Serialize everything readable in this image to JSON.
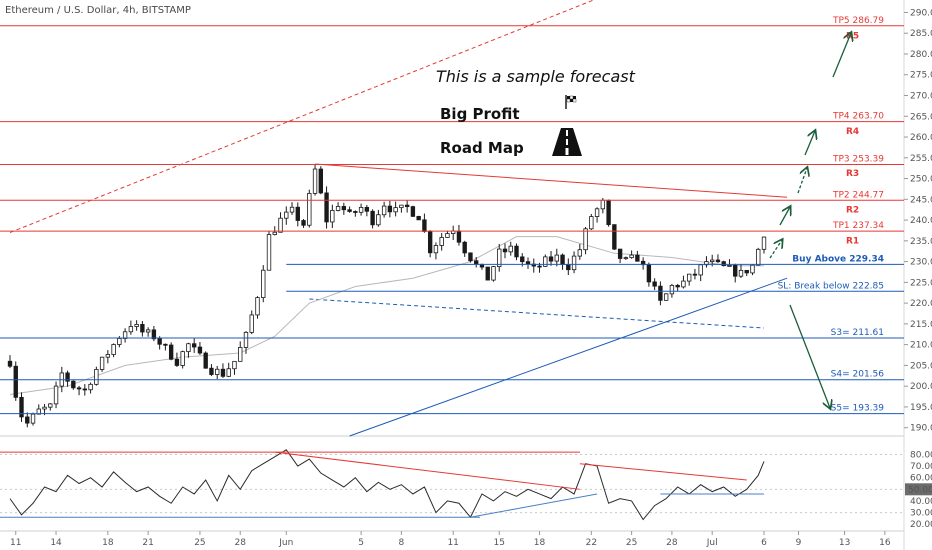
{
  "header": {
    "title": "Ethereum / U.S. Dollar, 4h, BITSTAMP"
  },
  "annotations": {
    "forecast": "This is a sample forecast",
    "big_profit": "Big Profit",
    "road_map": "Road Map"
  },
  "icons": {
    "flag": "checkered-flag-icon",
    "road": "road-icon"
  },
  "colors": {
    "red": "#e53935",
    "blue": "#1e5bb8",
    "candle": "#1a1a1a",
    "ma": "#b8b8b8",
    "green_arrow": "#1b5e3a",
    "rsi": "#2b2b2b",
    "rsi_blue": "#4a7fc4",
    "rsi_red": "#e53935"
  },
  "chart_data": [
    {
      "type": "candlestick",
      "ylim": [
        188,
        293
      ],
      "y_ticks": [
        190,
        195,
        200,
        205,
        210,
        215,
        220,
        225,
        230,
        235,
        240,
        245,
        250,
        255,
        260,
        265,
        270,
        275,
        280,
        285,
        290
      ],
      "x_ticks": [
        "11",
        "14",
        "18",
        "21",
        "25",
        "28",
        "Jun",
        "5",
        "8",
        "11",
        "15",
        "18",
        "22",
        "25",
        "28",
        "Jul",
        "6",
        "9",
        "13",
        "16"
      ],
      "levels": [
        {
          "label": "TP5 286.79",
          "value": 286.79,
          "color": "red"
        },
        {
          "label": "R5",
          "value": 284.5,
          "color": "red"
        },
        {
          "label": "TP4 263.70",
          "value": 263.7,
          "color": "red"
        },
        {
          "label": "R4",
          "value": 261.5,
          "color": "red"
        },
        {
          "label": "TP3 253.39",
          "value": 253.39,
          "color": "red"
        },
        {
          "label": "R3",
          "value": 251.3,
          "color": "red"
        },
        {
          "label": "TP2 244.77",
          "value": 244.77,
          "color": "red"
        },
        {
          "label": "R2",
          "value": 242.5,
          "color": "red"
        },
        {
          "label": "TP1 237.34",
          "value": 237.34,
          "color": "red"
        },
        {
          "label": "R1",
          "value": 235.1,
          "color": "red"
        },
        {
          "label": "Buy Above 229.34",
          "value": 229.34,
          "color": "blue"
        },
        {
          "label": "SL: Break below 222.85",
          "value": 222.85,
          "color": "blue"
        },
        {
          "label": "S3= 211.61",
          "value": 211.61,
          "color": "blue"
        },
        {
          "label": "S4= 201.56",
          "value": 201.56,
          "color": "blue"
        },
        {
          "label": "S5= 193.39",
          "value": 193.39,
          "color": "blue"
        }
      ],
      "close_path": [
        [
          0,
          206
        ],
        [
          1.5,
          194
        ],
        [
          3,
          191
        ],
        [
          5,
          194
        ],
        [
          7,
          195
        ],
        [
          9,
          203
        ],
        [
          11,
          200
        ],
        [
          13,
          199
        ],
        [
          15,
          204
        ],
        [
          17,
          208
        ],
        [
          19,
          212
        ],
        [
          21,
          215
        ],
        [
          23,
          213
        ],
        [
          25,
          212
        ],
        [
          27,
          209
        ],
        [
          29,
          206
        ],
        [
          31,
          210
        ],
        [
          33,
          207
        ],
        [
          35,
          204
        ],
        [
          37,
          203
        ],
        [
          39,
          206
        ],
        [
          41,
          212
        ],
        [
          43,
          222
        ],
        [
          45,
          236
        ],
        [
          47,
          240
        ],
        [
          49,
          242
        ],
        [
          51,
          239
        ],
        [
          53,
          252
        ],
        [
          55,
          240
        ],
        [
          57,
          244
        ],
        [
          59,
          241
        ],
        [
          61,
          243
        ],
        [
          63,
          240
        ],
        [
          65,
          244
        ],
        [
          67,
          242
        ],
        [
          69,
          243
        ],
        [
          71,
          241
        ],
        [
          73,
          233
        ],
        [
          75,
          236
        ],
        [
          77,
          238
        ],
        [
          79,
          233
        ],
        [
          81,
          229
        ],
        [
          83,
          226
        ],
        [
          85,
          232
        ],
        [
          87,
          233
        ],
        [
          89,
          230
        ],
        [
          91,
          228
        ],
        [
          93,
          230
        ],
        [
          95,
          231
        ],
        [
          97,
          229
        ],
        [
          99,
          233
        ],
        [
          101,
          241
        ],
        [
          103,
          244
        ],
        [
          105,
          232
        ],
        [
          107,
          230
        ],
        [
          109,
          231
        ],
        [
          111,
          226
        ],
        [
          113,
          220
        ],
        [
          115,
          224
        ],
        [
          117,
          225
        ],
        [
          119,
          227
        ],
        [
          121,
          230
        ],
        [
          123,
          229
        ],
        [
          125,
          228
        ],
        [
          127,
          227
        ],
        [
          129,
          229
        ],
        [
          131,
          237
        ]
      ],
      "series": [
        {
          "name": "",
          "kind": "moving-average",
          "values": [
            [
              0,
              198
            ],
            [
              10,
              200
            ],
            [
              20,
              205
            ],
            [
              30,
              207
            ],
            [
              40,
              208
            ],
            [
              46,
              212
            ],
            [
              52,
              220
            ],
            [
              60,
              224
            ],
            [
              70,
              226
            ],
            [
              80,
              230
            ],
            [
              88,
              236
            ],
            [
              95,
              236
            ],
            [
              105,
              232
            ],
            [
              115,
              231
            ],
            [
              125,
              229
            ],
            [
              131,
              229
            ]
          ]
        }
      ],
      "trendlines": [
        {
          "kind": "red-dashed",
          "points": [
            [
              0,
              237
            ],
            [
              105,
              295
            ]
          ]
        },
        {
          "kind": "red-descending-resistance",
          "points": [
            [
              53,
              253.5
            ],
            [
              135,
              245.5
            ]
          ]
        },
        {
          "kind": "blue-rising-support",
          "points": [
            [
              59,
              188
            ],
            [
              135,
              226
            ]
          ]
        },
        {
          "kind": "blue-dashed-channel",
          "points": [
            [
              52,
              221
            ],
            [
              131,
              214
            ]
          ]
        }
      ]
    },
    {
      "type": "line",
      "name": "",
      "ylim": [
        15,
        95
      ],
      "y_ticks": [
        20,
        30,
        40,
        50,
        60,
        70,
        80
      ],
      "badge": "50.00",
      "values": [
        [
          0,
          42
        ],
        [
          2,
          28
        ],
        [
          4,
          38
        ],
        [
          6,
          52
        ],
        [
          8,
          48
        ],
        [
          10,
          62
        ],
        [
          12,
          55
        ],
        [
          14,
          60
        ],
        [
          16,
          52
        ],
        [
          18,
          65
        ],
        [
          20,
          56
        ],
        [
          22,
          48
        ],
        [
          24,
          52
        ],
        [
          26,
          44
        ],
        [
          28,
          38
        ],
        [
          30,
          52
        ],
        [
          32,
          46
        ],
        [
          34,
          58
        ],
        [
          36,
          40
        ],
        [
          38,
          62
        ],
        [
          40,
          50
        ],
        [
          42,
          66
        ],
        [
          44,
          72
        ],
        [
          46,
          78
        ],
        [
          48,
          84
        ],
        [
          50,
          70
        ],
        [
          52,
          76
        ],
        [
          54,
          64
        ],
        [
          56,
          58
        ],
        [
          58,
          52
        ],
        [
          60,
          60
        ],
        [
          62,
          48
        ],
        [
          64,
          56
        ],
        [
          66,
          50
        ],
        [
          68,
          54
        ],
        [
          70,
          46
        ],
        [
          72,
          52
        ],
        [
          74,
          30
        ],
        [
          76,
          40
        ],
        [
          78,
          38
        ],
        [
          80,
          26
        ],
        [
          82,
          46
        ],
        [
          84,
          40
        ],
        [
          86,
          48
        ],
        [
          88,
          44
        ],
        [
          90,
          50
        ],
        [
          92,
          46
        ],
        [
          94,
          42
        ],
        [
          96,
          52
        ],
        [
          98,
          46
        ],
        [
          100,
          72
        ],
        [
          102,
          70
        ],
        [
          104,
          38
        ],
        [
          106,
          42
        ],
        [
          108,
          40
        ],
        [
          110,
          24
        ],
        [
          112,
          36
        ],
        [
          114,
          42
        ],
        [
          116,
          52
        ],
        [
          118,
          46
        ],
        [
          120,
          54
        ],
        [
          122,
          48
        ],
        [
          124,
          52
        ],
        [
          126,
          44
        ],
        [
          128,
          50
        ],
        [
          130,
          62
        ],
        [
          131,
          74
        ]
      ],
      "trendlines": [
        {
          "kind": "red",
          "points": [
            [
              46,
              82
            ],
            [
              99,
              50
            ]
          ]
        },
        {
          "kind": "red",
          "points": [
            [
              99,
              72
            ],
            [
              128,
              58
            ]
          ]
        },
        {
          "kind": "blue",
          "points": [
            [
              80,
              26
            ],
            [
              102,
              46
            ]
          ]
        },
        {
          "kind": "blue-flat",
          "points": [
            [
              113,
              46
            ],
            [
              131,
              46
            ]
          ]
        }
      ]
    }
  ]
}
